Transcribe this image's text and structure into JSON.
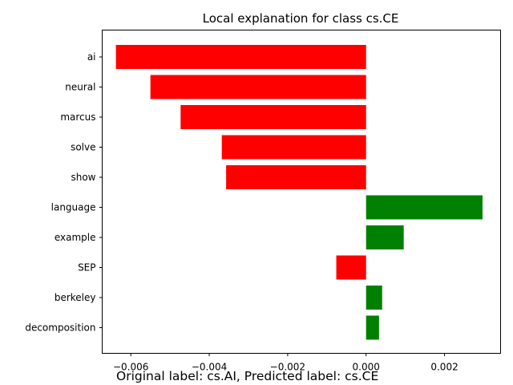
{
  "chart_data": {
    "type": "bar",
    "orientation": "horizontal",
    "title": "Local explanation for class cs.CE",
    "xlabel": "",
    "ylabel": "",
    "categories": [
      "ai",
      "neural",
      "marcus",
      "solve",
      "show",
      "language",
      "example",
      "SEP",
      "berkeley",
      "decomposition"
    ],
    "values": [
      -0.00638,
      -0.0055,
      -0.00473,
      -0.00368,
      -0.00357,
      0.00297,
      0.00096,
      -0.00076,
      0.00041,
      0.00033
    ],
    "xlim": [
      -0.00673,
      0.00343
    ],
    "xticks": [
      -0.006,
      -0.004,
      -0.002,
      0.0,
      0.002
    ],
    "xtick_labels": [
      "−0.006",
      "−0.004",
      "−0.002",
      "0.000",
      "0.002"
    ],
    "grid": false,
    "positive_color": "#008000",
    "negative_color": "#ff0000"
  },
  "caption": "Original label: cs.AI, Predicted label: cs.CE"
}
